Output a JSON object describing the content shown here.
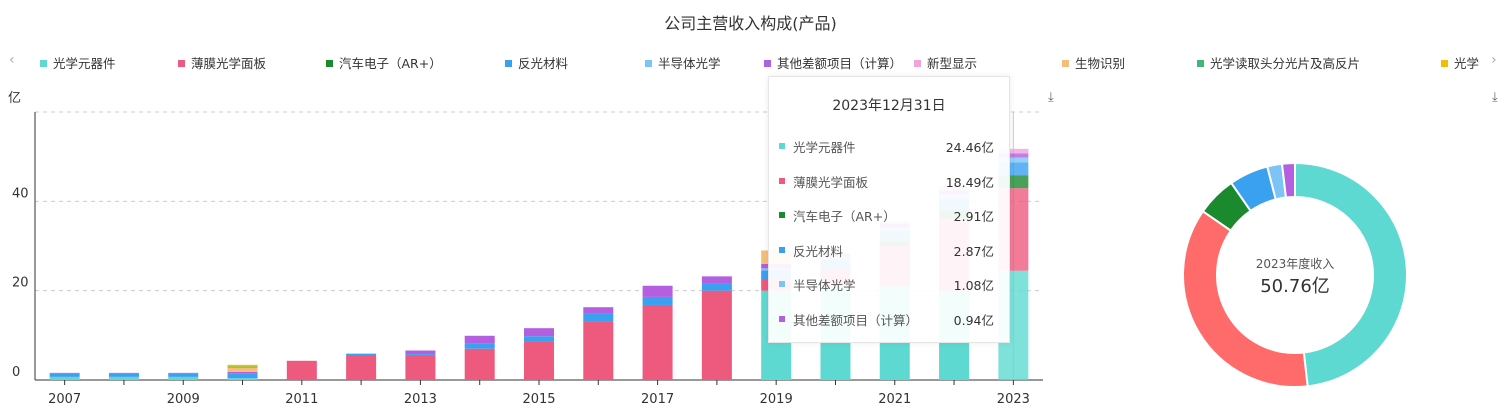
{
  "chart_data": {
    "type": "bar",
    "title": "公司主营收入构成(产品)",
    "ylabel": "亿",
    "ylim": [
      0,
      60
    ],
    "yticks": [
      0,
      20,
      40
    ],
    "categories": [
      "2007",
      "2008",
      "2009",
      "2010",
      "2011",
      "2012",
      "2013",
      "2014",
      "2015",
      "2016",
      "2017",
      "2018",
      "2019",
      "2020",
      "2021",
      "2022",
      "2023"
    ],
    "x_tick_labels": [
      "2007",
      "2009",
      "2011",
      "2013",
      "2015",
      "2017",
      "2019",
      "2021",
      "2023"
    ],
    "series": [
      {
        "name": "光学元器件",
        "color": "#5ed9d1",
        "values": [
          0.7,
          0.7,
          0.7,
          0.4,
          0,
          0,
          0,
          0,
          0,
          0,
          0,
          0,
          20,
          21,
          21,
          20,
          24.46
        ]
      },
      {
        "name": "薄膜光学面板",
        "color": "#ee5a7e",
        "values": [
          0,
          0,
          0,
          0,
          4.3,
          5.6,
          5.6,
          7.0,
          8.6,
          13.0,
          16.8,
          20.0,
          2.5,
          3.8,
          9.0,
          16.0,
          18.49
        ]
      },
      {
        "name": "汽车电子（AR+）",
        "color": "#1b8a2f",
        "values": [
          0,
          0,
          0,
          0,
          0,
          0,
          0,
          0,
          0,
          0,
          0,
          0,
          0,
          0,
          1.0,
          2.0,
          2.91
        ]
      },
      {
        "name": "反光材料",
        "color": "#3aa0f0",
        "values": [
          0.7,
          0.7,
          0.7,
          1.1,
          0,
          0.3,
          0.2,
          1.1,
          1.2,
          1.8,
          1.8,
          1.7,
          2.0,
          2.2,
          2.4,
          2.6,
          2.87
        ]
      },
      {
        "name": "半导体光学",
        "color": "#7cc4f5",
        "values": [
          0,
          0,
          0,
          0,
          0,
          0,
          0,
          0,
          0,
          0,
          0,
          0,
          0.5,
          0.6,
          0.8,
          1.0,
          1.08
        ]
      },
      {
        "name": "其他差额项目（计算）",
        "color": "#b45ee0",
        "values": [
          0.2,
          0.2,
          0.2,
          0.3,
          0,
          0,
          0.8,
          1.8,
          1.8,
          1.5,
          2.5,
          1.5,
          1.0,
          0.6,
          0.8,
          0.9,
          0.94
        ]
      },
      {
        "name": "新型显示",
        "color": "#f0a4dc",
        "values": [
          0,
          0,
          0,
          0,
          0,
          0,
          0,
          0,
          0,
          0,
          0,
          0,
          0,
          0,
          0.5,
          0.8,
          1.0
        ]
      },
      {
        "name": "生物识别",
        "color": "#f5be78",
        "values": [
          0,
          0,
          0,
          1.0,
          0,
          0,
          0,
          0,
          0,
          0,
          0,
          0,
          3.0,
          0,
          0,
          0,
          0
        ]
      },
      {
        "name": "光学读取头分光片及高反片",
        "color": "#3cb878",
        "values": [
          0,
          0,
          0,
          0.2,
          0,
          0,
          0,
          0,
          0,
          0,
          0,
          0,
          0,
          0,
          0,
          0,
          0
        ]
      },
      {
        "name": "光学",
        "color": "#f0c000",
        "values": [
          0,
          0,
          0,
          0.4,
          0,
          0,
          0,
          0,
          0,
          0,
          0,
          0,
          0,
          0,
          0,
          0,
          0
        ]
      }
    ],
    "legend": [
      {
        "name": "光学元器件",
        "color": "#5ed9d1"
      },
      {
        "name": "薄膜光学面板",
        "color": "#ee5a7e"
      },
      {
        "name": "汽车电子（AR+）",
        "color": "#1b8a2f"
      },
      {
        "name": "反光材料",
        "color": "#3aa0f0"
      },
      {
        "name": "半导体光学",
        "color": "#7cc4f5"
      },
      {
        "name": "其他差额项目（计算）",
        "color": "#b45ee0"
      },
      {
        "name": "新型显示",
        "color": "#f0a4dc"
      },
      {
        "name": "生物识别",
        "color": "#f5be78"
      },
      {
        "name": "光学读取头分光片及高反片",
        "color": "#3cb878"
      },
      {
        "name": "光学",
        "color": "#f0c000"
      }
    ],
    "highlighted_category": "2023",
    "tooltip": {
      "title": "2023年12月31日",
      "rows": [
        {
          "name": "光学元器件",
          "value": "24.46亿",
          "color": "#5ed9d1"
        },
        {
          "name": "薄膜光学面板",
          "value": "18.49亿",
          "color": "#ee5a7e"
        },
        {
          "name": "汽车电子（AR+）",
          "value": "2.91亿",
          "color": "#1b8a2f"
        },
        {
          "name": "反光材料",
          "value": "2.87亿",
          "color": "#3aa0f0"
        },
        {
          "name": "半导体光学",
          "value": "1.08亿",
          "color": "#7cc4f5"
        },
        {
          "name": "其他差额项目（计算）",
          "value": "0.94亿",
          "color": "#b45ee0"
        }
      ]
    },
    "donut": {
      "type": "pie",
      "center_label": "2023年度收入",
      "center_value": "50.76亿",
      "slices": [
        {
          "name": "光学元器件",
          "value": 24.46,
          "color": "#5ed9d1"
        },
        {
          "name": "薄膜光学面板",
          "value": 18.49,
          "color": "#ff6b6b"
        },
        {
          "name": "汽车电子（AR+）",
          "value": 2.91,
          "color": "#1b8a2f"
        },
        {
          "name": "反光材料",
          "value": 2.87,
          "color": "#3aa0f0"
        },
        {
          "name": "半导体光学",
          "value": 1.08,
          "color": "#7cc4f5"
        },
        {
          "name": "其他差额项目（计算）",
          "value": 0.94,
          "color": "#b45ee0"
        }
      ]
    }
  },
  "ui": {
    "legend_prev_icon": "chevron-left-icon",
    "legend_next_icon": "chevron-right-icon",
    "download_icon": "download-icon",
    "prev_glyph": "‹",
    "next_glyph": "›",
    "download_glyph": "⤓"
  }
}
